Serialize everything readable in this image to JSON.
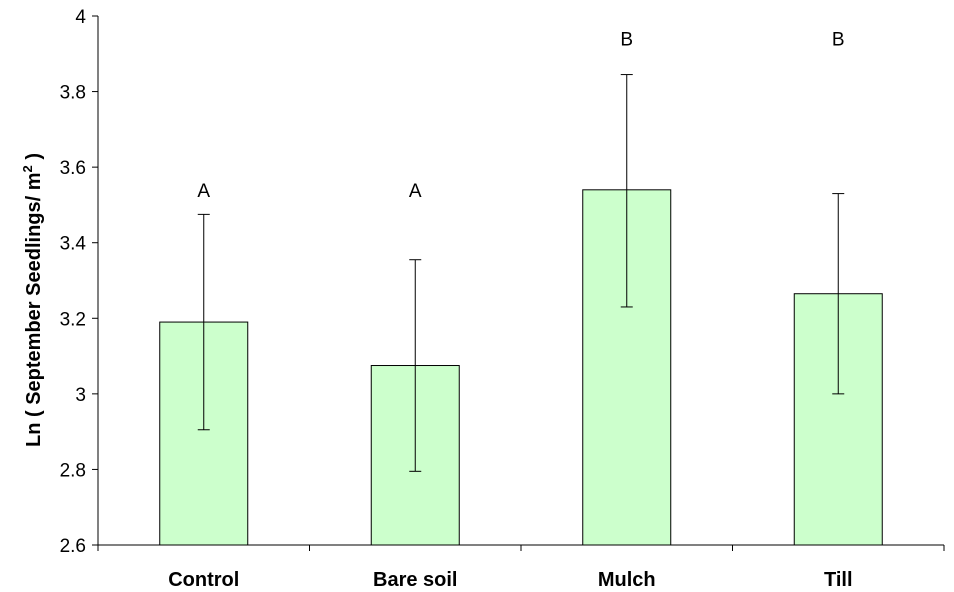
{
  "chart_data": {
    "type": "bar",
    "title": "",
    "xlabel": "",
    "ylabel": "Ln ( September Seedlings/ m",
    "ylabel_sup": "2",
    "ylabel_suffix": " )",
    "ylim": [
      2.6,
      4.0
    ],
    "yticks": [
      2.6,
      2.8,
      3.0,
      3.2,
      3.4,
      3.6,
      3.8,
      4.0
    ],
    "ytick_labels": [
      "2.6",
      "2.8",
      "3",
      "3.2",
      "3.4",
      "3.6",
      "3.8",
      "4"
    ],
    "categories": [
      "Control",
      "Bare soil",
      "Mulch",
      "Till"
    ],
    "values": [
      3.19,
      3.075,
      3.54,
      3.265
    ],
    "error_upper": [
      3.475,
      3.355,
      3.845,
      3.53
    ],
    "error_lower": [
      2.905,
      2.795,
      3.23,
      3.0
    ],
    "significance_labels": [
      "A",
      "A",
      "B",
      "B"
    ],
    "significance_y": [
      3.54,
      3.54,
      3.94,
      3.94
    ],
    "bar_color": "#ccffcc",
    "bar_edge_color": "#000000",
    "grid": false,
    "legend": "none"
  }
}
